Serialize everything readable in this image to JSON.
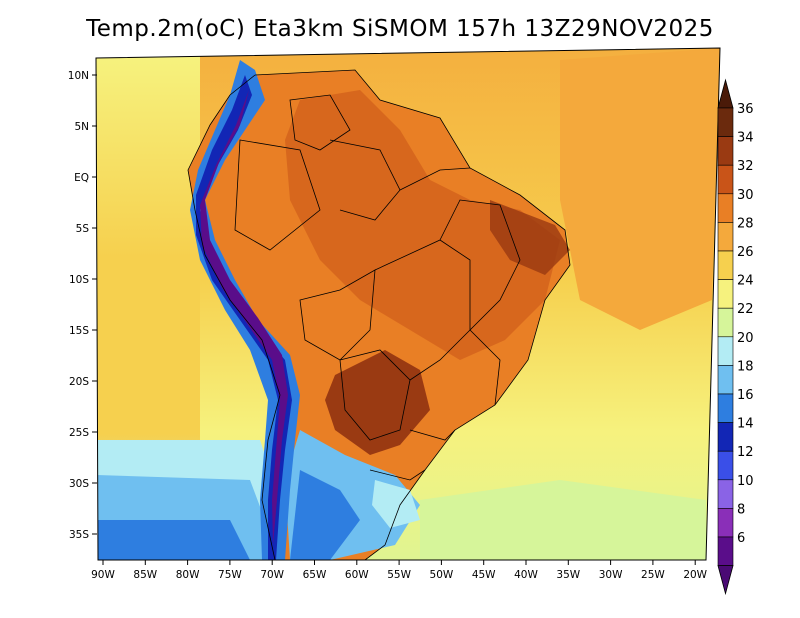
{
  "title": "Temp.2m(oC) Eta3km SiSMOM 157h 13Z29NOV2025",
  "lat_labels": [
    "10N",
    "5N",
    "EQ",
    "5S",
    "10S",
    "15S",
    "20S",
    "25S",
    "30S",
    "35S"
  ],
  "lon_labels": [
    "90W",
    "85W",
    "80W",
    "75W",
    "70W",
    "65W",
    "60W",
    "55W",
    "50W",
    "45W",
    "40W",
    "35W",
    "30W",
    "25W",
    "20W"
  ],
  "colorbar": {
    "labels": [
      "36",
      "34",
      "32",
      "30",
      "28",
      "26",
      "24",
      "22",
      "20",
      "18",
      "16",
      "14",
      "12",
      "10",
      "8",
      "6"
    ],
    "colors": [
      "#6b2a0d",
      "#9a3a12",
      "#c95418",
      "#e97f25",
      "#f4a93c",
      "#f6d04e",
      "#f6f27e",
      "#d6f59a",
      "#b3ecf4",
      "#6fbff0",
      "#2e7ee0",
      "#1226b5",
      "#3a4fe8",
      "#8a63e6",
      "#8a2fb8",
      "#5a0d8a"
    ],
    "top_color": "#4a1a08",
    "bottom_color": "#4a0a74"
  },
  "field_colors": {
    "ocean_north": "#f4a93c",
    "ocean_central": "#f6d04e",
    "ocean_south": "#f6f27e",
    "land_hot": "#e97f25",
    "land_hotter": "#c95418",
    "land_hottest": "#9a3a12",
    "andes_cold": "#5a0d8a",
    "andes_mid": "#2e7ee0",
    "pampa": "#6fbff0",
    "south_ocean": "#b3ecf4"
  }
}
